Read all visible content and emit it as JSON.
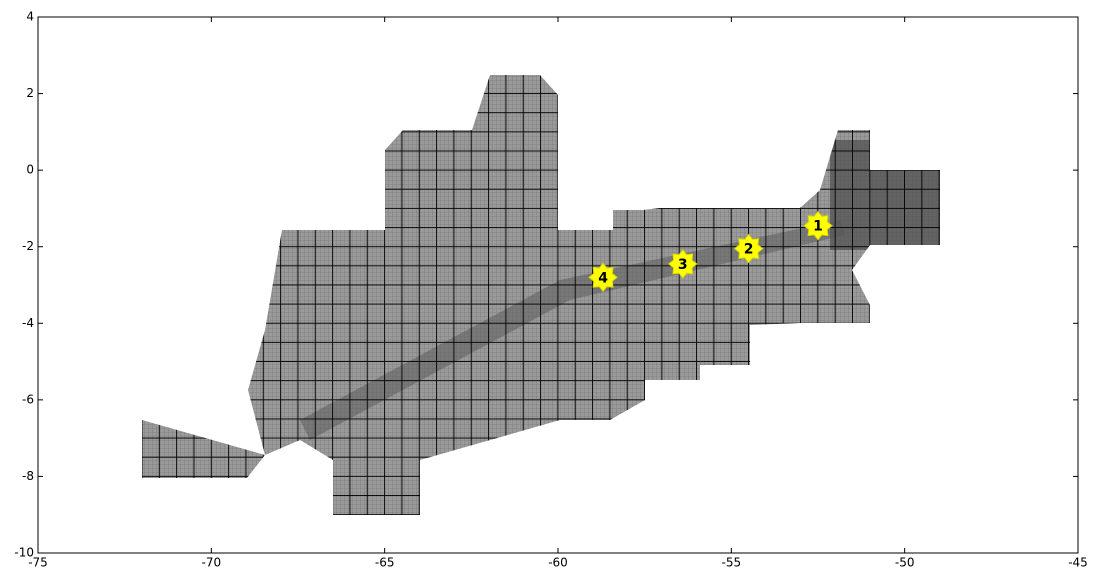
{
  "chart_data": {
    "type": "scatter",
    "xlim": [
      -75,
      -45
    ],
    "ylim": [
      -10,
      4
    ],
    "xticks": [
      -75,
      -70,
      -65,
      -60,
      -55,
      -50,
      -45
    ],
    "yticks": [
      -10,
      -8,
      -6,
      -4,
      -2,
      0,
      2,
      4
    ],
    "x": [
      -52.5,
      -54.5,
      -56.4,
      -58.7
    ],
    "values": [
      -1.45,
      -2.05,
      -2.45,
      -2.8
    ],
    "labels": [
      "1",
      "2",
      "3",
      "4"
    ],
    "color": "#ffff00"
  }
}
